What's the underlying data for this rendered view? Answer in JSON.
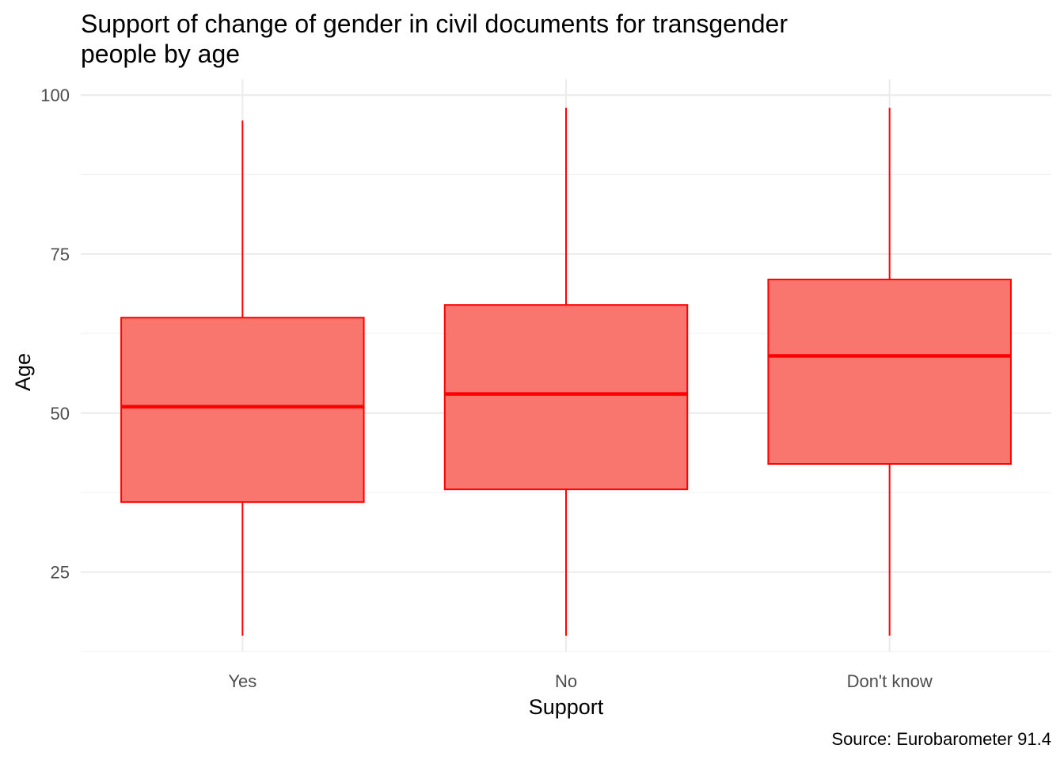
{
  "chart_data": {
    "type": "boxplot",
    "title_lines": [
      "Support of change of gender in civil documents for transgender",
      "people by age"
    ],
    "xlabel": "Support",
    "ylabel": "Age",
    "caption": "Source: Eurobarometer 91.4",
    "categories": [
      "Yes",
      "No",
      "Don't know"
    ],
    "boxes": [
      {
        "category": "Yes",
        "min": 15,
        "q1": 36,
        "median": 51,
        "q3": 65,
        "max": 96
      },
      {
        "category": "No",
        "min": 15,
        "q1": 38,
        "median": 53,
        "q3": 67,
        "max": 98
      },
      {
        "category": "Don't know",
        "min": 15,
        "q1": 42,
        "median": 59,
        "q3": 71,
        "max": 98
      }
    ],
    "ylim": [
      12.5,
      102.5
    ],
    "y_ticks": [
      25,
      50,
      75,
      100
    ],
    "y_minor_ticks": [
      12.5,
      37.5,
      62.5,
      87.5
    ],
    "fill_color": "#F8766D",
    "line_color": "#FF0000",
    "grid": true,
    "legend": "none"
  }
}
